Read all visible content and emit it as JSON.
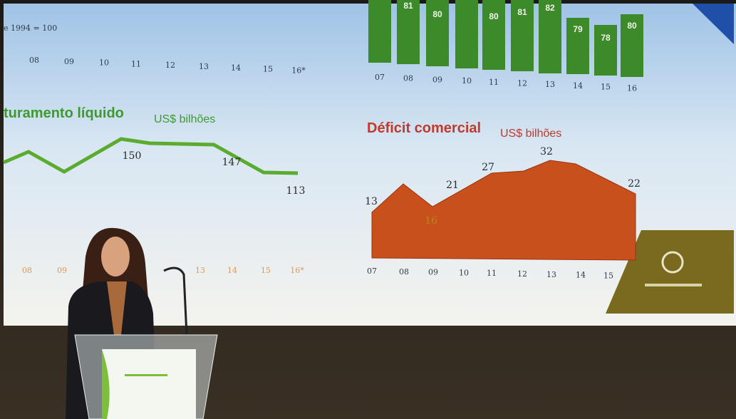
{
  "screen": {
    "index_note": "e 1994 = 100",
    "index_axis": [
      "08",
      "09",
      "10",
      "11",
      "12",
      "13",
      "14",
      "15",
      "16*"
    ],
    "bars": {
      "value_labels": [
        81,
        80,
        80,
        81,
        82,
        79,
        78,
        80
      ],
      "axis": [
        "07",
        "08",
        "09",
        "10",
        "11",
        "12",
        "13",
        "14",
        "15",
        "16"
      ]
    },
    "revenue": {
      "title": "turamento líquido",
      "unit": "US$ bilhões",
      "labels": [
        150,
        147,
        113
      ],
      "axis": [
        "08",
        "09",
        "13",
        "14",
        "15",
        "16*"
      ]
    },
    "deficit": {
      "title": "Déficit comercial",
      "unit": "US$ bilhões",
      "labels": [
        13,
        21,
        16,
        27,
        32,
        22
      ],
      "axis": [
        "07",
        "08",
        "09",
        "10",
        "11",
        "12",
        "13",
        "14",
        "15"
      ]
    }
  }
}
